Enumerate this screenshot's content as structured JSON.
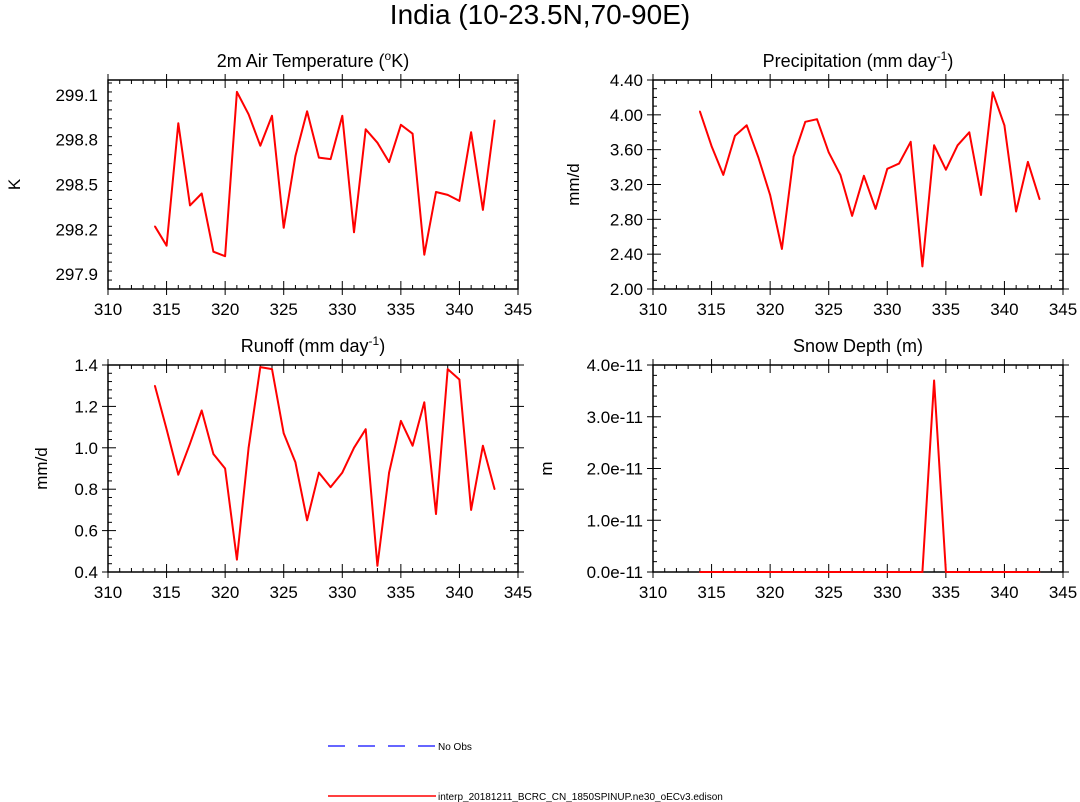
{
  "figure": {
    "title": "India (10-23.5N,70-90E)",
    "series_color": "#ff0000",
    "obs_color": "#3333ff"
  },
  "legend": {
    "items": [
      {
        "label": "No Obs",
        "style": "dashed",
        "color": "#3333ff"
      },
      {
        "label": "interp_20181211_BCRC_CN_1850SPINUP.ne30_oECv3.edison",
        "style": "solid",
        "color": "#ff0000"
      }
    ]
  },
  "chart_data": [
    {
      "type": "line",
      "title_parts": [
        "2m Air Temperature (",
        "o",
        "K)"
      ],
      "ylabel": "K",
      "xlim": [
        310,
        345
      ],
      "xticks": [
        310,
        315,
        320,
        325,
        330,
        335,
        340,
        345
      ],
      "ylim": [
        297.8,
        299.2
      ],
      "yticks": [
        297.9,
        298.2,
        298.5,
        298.8,
        299.1
      ],
      "ytick_labels": [
        "297.9",
        "298.2",
        "298.5",
        "298.8",
        "299.1"
      ],
      "x": [
        314,
        315,
        316,
        317,
        318,
        319,
        320,
        321,
        322,
        323,
        324,
        325,
        326,
        327,
        328,
        329,
        330,
        331,
        332,
        333,
        334,
        335,
        336,
        337,
        338,
        339,
        340,
        341,
        342,
        343
      ],
      "values": [
        298.22,
        298.09,
        298.91,
        298.36,
        298.44,
        298.05,
        298.02,
        299.12,
        298.97,
        298.76,
        298.96,
        298.21,
        298.69,
        298.99,
        298.68,
        298.67,
        298.96,
        298.18,
        298.87,
        298.78,
        298.65,
        298.9,
        298.84,
        298.03,
        298.45,
        298.43,
        298.39,
        298.85,
        298.33,
        298.93
      ]
    },
    {
      "type": "line",
      "title_parts": [
        "Precipitation (mm day",
        "-1",
        ")"
      ],
      "ylabel": "mm/d",
      "xlim": [
        310,
        345
      ],
      "xticks": [
        310,
        315,
        320,
        325,
        330,
        335,
        340,
        345
      ],
      "ylim": [
        2.0,
        4.4
      ],
      "yticks": [
        2.0,
        2.4,
        2.8,
        3.2,
        3.6,
        4.0,
        4.4
      ],
      "ytick_labels": [
        "2.00",
        "2.40",
        "2.80",
        "3.20",
        "3.60",
        "4.00",
        "4.40"
      ],
      "x": [
        314,
        315,
        316,
        317,
        318,
        319,
        320,
        321,
        322,
        323,
        324,
        325,
        326,
        327,
        328,
        329,
        330,
        331,
        332,
        333,
        334,
        335,
        336,
        337,
        338,
        339,
        340,
        341,
        342,
        343
      ],
      "values": [
        4.04,
        3.64,
        3.31,
        3.76,
        3.88,
        3.51,
        3.08,
        2.46,
        3.52,
        3.92,
        3.95,
        3.57,
        3.31,
        2.84,
        3.3,
        2.92,
        3.38,
        3.44,
        3.69,
        2.26,
        3.65,
        3.37,
        3.65,
        3.8,
        3.08,
        4.26,
        3.88,
        2.89,
        3.46,
        3.03
      ]
    },
    {
      "type": "line",
      "title_parts": [
        "Runoff (mm day",
        "-1",
        ")"
      ],
      "ylabel": "mm/d",
      "xlim": [
        310,
        345
      ],
      "xticks": [
        310,
        315,
        320,
        325,
        330,
        335,
        340,
        345
      ],
      "ylim": [
        0.4,
        1.4
      ],
      "yticks": [
        0.4,
        0.6,
        0.8,
        1.0,
        1.2,
        1.4
      ],
      "ytick_labels": [
        "0.4",
        "0.6",
        "0.8",
        "1.0",
        "1.2",
        "1.4"
      ],
      "x": [
        314,
        315,
        316,
        317,
        318,
        319,
        320,
        321,
        322,
        323,
        324,
        325,
        326,
        327,
        328,
        329,
        330,
        331,
        332,
        333,
        334,
        335,
        336,
        337,
        338,
        339,
        340,
        341,
        342,
        343
      ],
      "values": [
        1.3,
        1.09,
        0.87,
        1.02,
        1.18,
        0.97,
        0.9,
        0.46,
        1.0,
        1.39,
        1.38,
        1.07,
        0.93,
        0.65,
        0.88,
        0.81,
        0.88,
        1.0,
        1.09,
        0.43,
        0.88,
        1.13,
        1.01,
        1.22,
        0.68,
        1.38,
        1.33,
        0.7,
        1.01,
        0.8
      ]
    },
    {
      "type": "line",
      "title_parts": [
        "Snow Depth (m)",
        "",
        ""
      ],
      "ylabel": "m",
      "xlim": [
        310,
        345
      ],
      "xticks": [
        310,
        315,
        320,
        325,
        330,
        335,
        340,
        345
      ],
      "ylim": [
        0,
        4e-11
      ],
      "yticks": [
        0,
        1e-11,
        2e-11,
        3e-11,
        4e-11
      ],
      "ytick_labels": [
        "0.0e-11",
        "1.0e-11",
        "2.0e-11",
        "3.0e-11",
        "4.0e-11"
      ],
      "x": [
        314,
        315,
        316,
        317,
        318,
        319,
        320,
        321,
        322,
        323,
        324,
        325,
        326,
        327,
        328,
        329,
        330,
        331,
        332,
        333,
        334,
        335,
        336,
        337,
        338,
        339,
        340,
        341,
        342,
        343
      ],
      "values": [
        0,
        0,
        0,
        0,
        0,
        0,
        0,
        0,
        0,
        0,
        0,
        0,
        0,
        0,
        0,
        0,
        0,
        0,
        0,
        0,
        3.7e-11,
        0,
        0,
        0,
        0,
        0,
        0,
        0,
        0,
        0
      ]
    }
  ]
}
